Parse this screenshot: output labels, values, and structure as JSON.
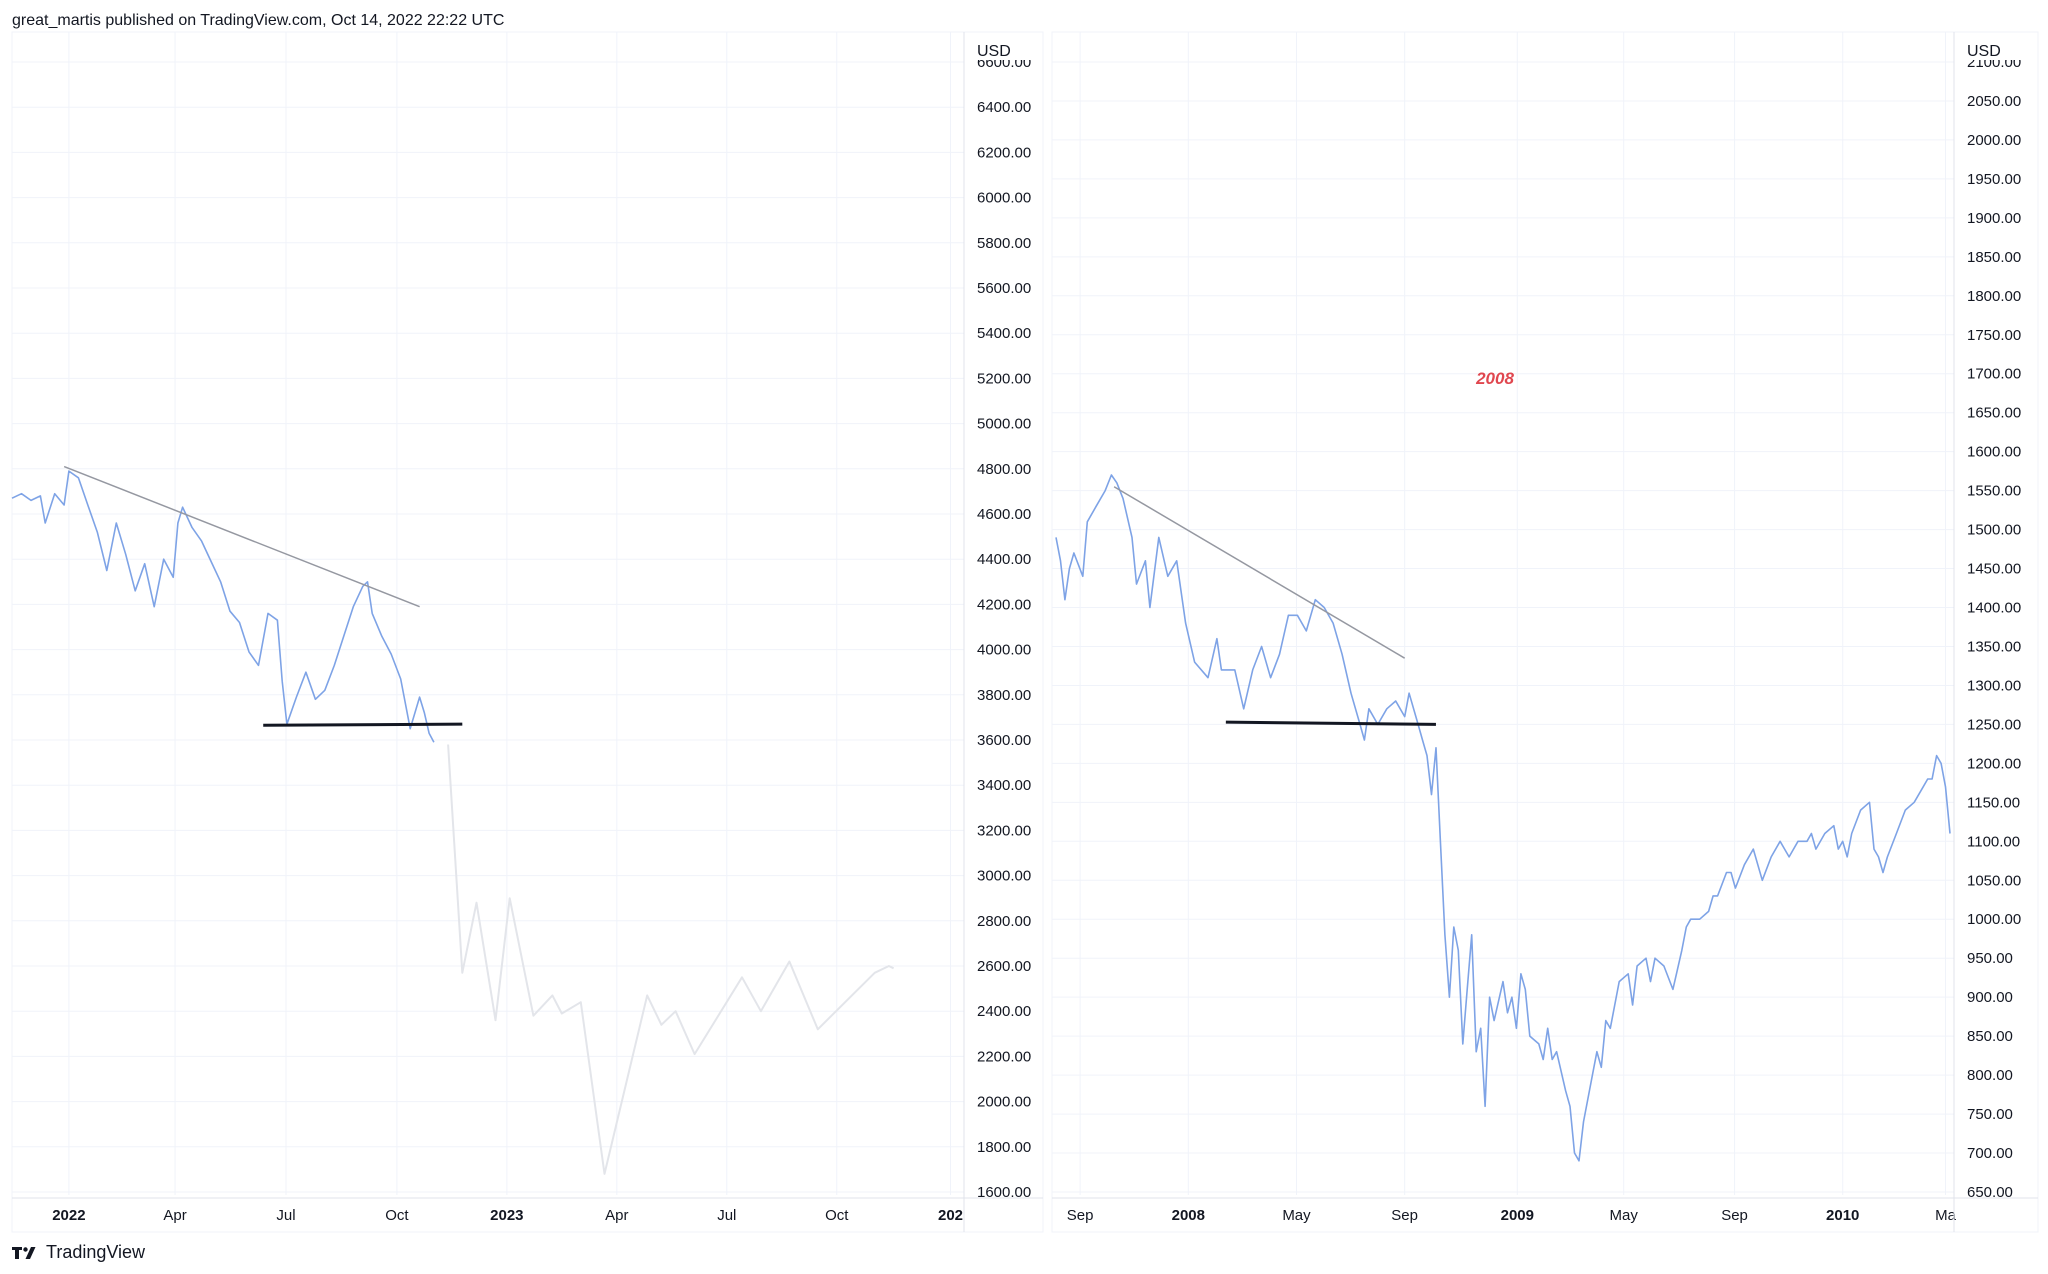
{
  "header": {
    "publisher": "great_martis published on TradingView.com, Oct 14, 2022 22:22 UTC"
  },
  "footer": {
    "brand": "TradingView"
  },
  "colors": {
    "line": "#7ea3e6",
    "projection": "#e3e5ea",
    "grid": "#f0f3fa",
    "annotation": "#e0474f",
    "trendline": "#9598a1",
    "support": "#131722"
  },
  "chart_data": [
    {
      "type": "line",
      "currency": "USD",
      "ylim": [
        1600,
        6600
      ],
      "yticks": [
        "6600.00",
        "6400.00",
        "6200.00",
        "6000.00",
        "5800.00",
        "5600.00",
        "5400.00",
        "5200.00",
        "5000.00",
        "4800.00",
        "4600.00",
        "4400.00",
        "4200.00",
        "4000.00",
        "3800.00",
        "3600.00",
        "3400.00",
        "3200.00",
        "3000.00",
        "2800.00",
        "2600.00",
        "2400.00",
        "2200.00",
        "2000.00",
        "1800.00",
        "1600.00"
      ],
      "xticks": [
        {
          "label": "2022",
          "bold": true,
          "t": 0.06
        },
        {
          "label": "Apr",
          "bold": false,
          "t": 0.172
        },
        {
          "label": "Jul",
          "bold": false,
          "t": 0.289
        },
        {
          "label": "Oct",
          "bold": false,
          "t": 0.406
        },
        {
          "label": "2023",
          "bold": true,
          "t": 0.522
        },
        {
          "label": "Apr",
          "bold": false,
          "t": 0.638
        },
        {
          "label": "Jul",
          "bold": false,
          "t": 0.754
        },
        {
          "label": "Oct",
          "bold": false,
          "t": 0.87
        },
        {
          "label": "202",
          "bold": true,
          "t": 0.99
        }
      ],
      "series": [
        {
          "role": "price",
          "points": [
            [
              0,
              4670
            ],
            [
              0.01,
              4690
            ],
            [
              0.02,
              4660
            ],
            [
              0.03,
              4680
            ],
            [
              0.035,
              4560
            ],
            [
              0.045,
              4690
            ],
            [
              0.055,
              4640
            ],
            [
              0.06,
              4790
            ],
            [
              0.07,
              4760
            ],
            [
              0.08,
              4640
            ],
            [
              0.09,
              4520
            ],
            [
              0.1,
              4350
            ],
            [
              0.11,
              4560
            ],
            [
              0.12,
              4420
            ],
            [
              0.13,
              4260
            ],
            [
              0.14,
              4380
            ],
            [
              0.15,
              4190
            ],
            [
              0.16,
              4400
            ],
            [
              0.17,
              4320
            ],
            [
              0.175,
              4560
            ],
            [
              0.18,
              4630
            ],
            [
              0.19,
              4540
            ],
            [
              0.2,
              4480
            ],
            [
              0.21,
              4390
            ],
            [
              0.22,
              4300
            ],
            [
              0.23,
              4170
            ],
            [
              0.24,
              4120
            ],
            [
              0.25,
              3990
            ],
            [
              0.26,
              3930
            ],
            [
              0.27,
              4160
            ],
            [
              0.28,
              4130
            ],
            [
              0.285,
              3860
            ],
            [
              0.29,
              3670
            ],
            [
              0.3,
              3790
            ],
            [
              0.31,
              3900
            ],
            [
              0.32,
              3780
            ],
            [
              0.33,
              3820
            ],
            [
              0.34,
              3930
            ],
            [
              0.35,
              4060
            ],
            [
              0.36,
              4190
            ],
            [
              0.37,
              4280
            ],
            [
              0.375,
              4300
            ],
            [
              0.38,
              4160
            ],
            [
              0.39,
              4060
            ],
            [
              0.4,
              3980
            ],
            [
              0.41,
              3870
            ],
            [
              0.42,
              3650
            ],
            [
              0.43,
              3790
            ],
            [
              0.435,
              3720
            ],
            [
              0.44,
              3630
            ],
            [
              0.445,
              3590
            ]
          ]
        },
        {
          "role": "projection",
          "points": [
            [
              0.46,
              3580
            ],
            [
              0.475,
              2570
            ],
            [
              0.49,
              2880
            ],
            [
              0.51,
              2360
            ],
            [
              0.525,
              2900
            ],
            [
              0.55,
              2380
            ],
            [
              0.57,
              2470
            ],
            [
              0.58,
              2390
            ],
            [
              0.6,
              2440
            ],
            [
              0.625,
              1680
            ],
            [
              0.67,
              2470
            ],
            [
              0.685,
              2340
            ],
            [
              0.7,
              2400
            ],
            [
              0.72,
              2210
            ],
            [
              0.77,
              2550
            ],
            [
              0.79,
              2400
            ],
            [
              0.82,
              2620
            ],
            [
              0.85,
              2320
            ],
            [
              0.91,
              2570
            ],
            [
              0.925,
              2600
            ],
            [
              0.93,
              2590
            ]
          ]
        }
      ],
      "annotations": [
        {
          "type": "trendline",
          "from": [
            0.055,
            4810
          ],
          "to": [
            0.43,
            4190
          ]
        },
        {
          "type": "support",
          "from": [
            0.265,
            3665
          ],
          "to": [
            0.475,
            3670
          ]
        }
      ]
    },
    {
      "type": "line",
      "currency": "USD",
      "ylim": [
        650,
        2100
      ],
      "yticks": [
        "2100.00",
        "2050.00",
        "2000.00",
        "1950.00",
        "1900.00",
        "1850.00",
        "1800.00",
        "1750.00",
        "1700.00",
        "1650.00",
        "1600.00",
        "1550.00",
        "1500.00",
        "1450.00",
        "1400.00",
        "1350.00",
        "1300.00",
        "1250.00",
        "1200.00",
        "1150.00",
        "1100.00",
        "1050.00",
        "1000.00",
        "950.00",
        "900.00",
        "850.00",
        "800.00",
        "750.00",
        "700.00",
        "650.00"
      ],
      "xticks": [
        {
          "label": "Sep",
          "bold": false,
          "t": 0.027
        },
        {
          "label": "2008",
          "bold": true,
          "t": 0.148
        },
        {
          "label": "May",
          "bold": false,
          "t": 0.269
        },
        {
          "label": "Sep",
          "bold": false,
          "t": 0.39
        },
        {
          "label": "2009",
          "bold": true,
          "t": 0.516
        },
        {
          "label": "May",
          "bold": false,
          "t": 0.635
        },
        {
          "label": "Sep",
          "bold": false,
          "t": 0.759
        },
        {
          "label": "2010",
          "bold": true,
          "t": 0.88
        },
        {
          "label": "Ma",
          "bold": false,
          "t": 0.995
        }
      ],
      "annotation_label": "2008",
      "series": [
        {
          "role": "price",
          "points": [
            [
              0,
              1490
            ],
            [
              0.005,
              1460
            ],
            [
              0.01,
              1410
            ],
            [
              0.015,
              1450
            ],
            [
              0.02,
              1470
            ],
            [
              0.03,
              1440
            ],
            [
              0.035,
              1510
            ],
            [
              0.045,
              1530
            ],
            [
              0.055,
              1550
            ],
            [
              0.062,
              1570
            ],
            [
              0.068,
              1560
            ],
            [
              0.075,
              1540
            ],
            [
              0.085,
              1490
            ],
            [
              0.09,
              1430
            ],
            [
              0.1,
              1460
            ],
            [
              0.105,
              1400
            ],
            [
              0.115,
              1490
            ],
            [
              0.125,
              1440
            ],
            [
              0.135,
              1460
            ],
            [
              0.145,
              1380
            ],
            [
              0.155,
              1330
            ],
            [
              0.17,
              1310
            ],
            [
              0.18,
              1360
            ],
            [
              0.185,
              1320
            ],
            [
              0.2,
              1320
            ],
            [
              0.21,
              1270
            ],
            [
              0.22,
              1320
            ],
            [
              0.23,
              1350
            ],
            [
              0.24,
              1310
            ],
            [
              0.25,
              1340
            ],
            [
              0.26,
              1390
            ],
            [
              0.27,
              1390
            ],
            [
              0.28,
              1370
            ],
            [
              0.29,
              1410
            ],
            [
              0.3,
              1400
            ],
            [
              0.31,
              1380
            ],
            [
              0.32,
              1340
            ],
            [
              0.33,
              1290
            ],
            [
              0.34,
              1250
            ],
            [
              0.345,
              1230
            ],
            [
              0.35,
              1270
            ],
            [
              0.36,
              1250
            ],
            [
              0.37,
              1270
            ],
            [
              0.38,
              1280
            ],
            [
              0.39,
              1260
            ],
            [
              0.395,
              1290
            ],
            [
              0.405,
              1250
            ],
            [
              0.41,
              1230
            ],
            [
              0.415,
              1210
            ],
            [
              0.42,
              1160
            ],
            [
              0.425,
              1220
            ],
            [
              0.43,
              1100
            ],
            [
              0.435,
              980
            ],
            [
              0.44,
              900
            ],
            [
              0.445,
              990
            ],
            [
              0.45,
              960
            ],
            [
              0.455,
              840
            ],
            [
              0.46,
              910
            ],
            [
              0.465,
              980
            ],
            [
              0.47,
              830
            ],
            [
              0.475,
              860
            ],
            [
              0.48,
              760
            ],
            [
              0.485,
              900
            ],
            [
              0.49,
              870
            ],
            [
              0.5,
              920
            ],
            [
              0.505,
              880
            ],
            [
              0.51,
              900
            ],
            [
              0.515,
              860
            ],
            [
              0.52,
              930
            ],
            [
              0.525,
              910
            ],
            [
              0.53,
              850
            ],
            [
              0.54,
              840
            ],
            [
              0.545,
              820
            ],
            [
              0.55,
              860
            ],
            [
              0.555,
              820
            ],
            [
              0.56,
              830
            ],
            [
              0.57,
              780
            ],
            [
              0.575,
              760
            ],
            [
              0.58,
              700
            ],
            [
              0.585,
              690
            ],
            [
              0.59,
              740
            ],
            [
              0.6,
              800
            ],
            [
              0.605,
              830
            ],
            [
              0.61,
              810
            ],
            [
              0.615,
              870
            ],
            [
              0.62,
              860
            ],
            [
              0.63,
              920
            ],
            [
              0.64,
              930
            ],
            [
              0.645,
              890
            ],
            [
              0.65,
              940
            ],
            [
              0.66,
              950
            ],
            [
              0.665,
              920
            ],
            [
              0.67,
              950
            ],
            [
              0.68,
              940
            ],
            [
              0.69,
              910
            ],
            [
              0.7,
              960
            ],
            [
              0.705,
              990
            ],
            [
              0.71,
              1000
            ],
            [
              0.72,
              1000
            ],
            [
              0.73,
              1010
            ],
            [
              0.735,
              1030
            ],
            [
              0.74,
              1030
            ],
            [
              0.75,
              1060
            ],
            [
              0.755,
              1060
            ],
            [
              0.76,
              1040
            ],
            [
              0.77,
              1070
            ],
            [
              0.78,
              1090
            ],
            [
              0.79,
              1050
            ],
            [
              0.8,
              1080
            ],
            [
              0.81,
              1100
            ],
            [
              0.815,
              1090
            ],
            [
              0.82,
              1080
            ],
            [
              0.83,
              1100
            ],
            [
              0.84,
              1100
            ],
            [
              0.845,
              1110
            ],
            [
              0.85,
              1090
            ],
            [
              0.86,
              1110
            ],
            [
              0.87,
              1120
            ],
            [
              0.875,
              1090
            ],
            [
              0.88,
              1100
            ],
            [
              0.885,
              1080
            ],
            [
              0.89,
              1110
            ],
            [
              0.9,
              1140
            ],
            [
              0.91,
              1150
            ],
            [
              0.915,
              1090
            ],
            [
              0.92,
              1080
            ],
            [
              0.925,
              1060
            ],
            [
              0.93,
              1080
            ],
            [
              0.94,
              1110
            ],
            [
              0.95,
              1140
            ],
            [
              0.96,
              1150
            ],
            [
              0.97,
              1170
            ],
            [
              0.975,
              1180
            ],
            [
              0.98,
              1180
            ],
            [
              0.985,
              1210
            ],
            [
              0.99,
              1200
            ],
            [
              0.995,
              1170
            ],
            [
              1.0,
              1110
            ]
          ]
        }
      ],
      "annotations": [
        {
          "type": "trendline",
          "from": [
            0.065,
            1555
          ],
          "to": [
            0.39,
            1335
          ]
        },
        {
          "type": "support",
          "from": [
            0.19,
            1253
          ],
          "to": [
            0.425,
            1250
          ]
        }
      ]
    }
  ]
}
